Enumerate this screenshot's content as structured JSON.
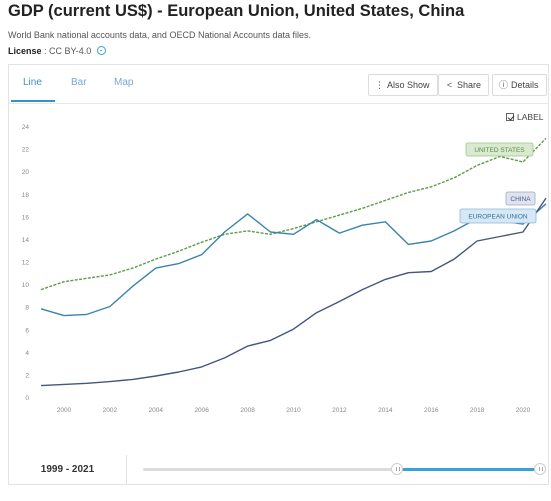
{
  "header": {
    "title": "GDP (current US$) - European Union, United States, China",
    "source": "World Bank national accounts data, and OECD National Accounts data files.",
    "license_label": "License",
    "license_value": ": CC BY-4.0"
  },
  "tabs": [
    {
      "label": "Line",
      "active": true
    },
    {
      "label": "Bar",
      "active": false
    },
    {
      "label": "Map",
      "active": false
    }
  ],
  "toolbar": {
    "also_show": "Also Show",
    "share": "Share",
    "details": "Details"
  },
  "label_toggle": {
    "text": "LABEL",
    "checked": true
  },
  "footer": {
    "range": "1999 - 2021"
  },
  "slider": {
    "start_year": 1960,
    "end_year": 2021,
    "range_start": 1999,
    "range_end": 2021
  },
  "colors": {
    "united_states": "#5a9e45",
    "european_union": "#3b83ad",
    "china": "#44557f",
    "accent": "#3aa0dc"
  },
  "chart_data": {
    "type": "line",
    "x": [
      1999,
      2000,
      2001,
      2002,
      2003,
      2004,
      2005,
      2006,
      2007,
      2008,
      2009,
      2010,
      2011,
      2012,
      2013,
      2014,
      2015,
      2016,
      2017,
      2018,
      2019,
      2020,
      2021
    ],
    "x_ticks": [
      "2000",
      "2002",
      "2004",
      "2006",
      "2008",
      "2010",
      "2012",
      "2014",
      "2016",
      "2018",
      "2020"
    ],
    "y_ticks": [
      "0",
      "2",
      "4",
      "6",
      "8",
      "10",
      "12",
      "14",
      "16",
      "18",
      "20",
      "22",
      "24"
    ],
    "ylim": [
      0,
      24
    ],
    "grid": false,
    "series": [
      {
        "name": "UNITED STATES",
        "color": "#5a9e45",
        "dashed": true,
        "values": [
          9.6,
          10.3,
          10.6,
          10.9,
          11.5,
          12.3,
          13.0,
          13.8,
          14.5,
          14.8,
          14.5,
          15.0,
          15.6,
          16.2,
          16.8,
          17.5,
          18.2,
          18.7,
          19.5,
          20.6,
          21.4,
          20.9,
          23.0
        ]
      },
      {
        "name": "EUROPEAN UNION",
        "color": "#3b83ad",
        "dashed": false,
        "values": [
          7.9,
          7.3,
          7.4,
          8.1,
          9.9,
          11.5,
          11.9,
          12.7,
          14.7,
          16.3,
          14.7,
          14.5,
          15.8,
          14.6,
          15.3,
          15.6,
          13.6,
          13.9,
          14.8,
          15.9,
          15.7,
          15.4,
          17.2
        ]
      },
      {
        "name": "CHINA",
        "color": "#44557f",
        "dashed": false,
        "values": [
          1.1,
          1.2,
          1.3,
          1.45,
          1.65,
          1.95,
          2.3,
          2.75,
          3.55,
          4.6,
          5.1,
          6.1,
          7.55,
          8.55,
          9.6,
          10.5,
          11.1,
          11.2,
          12.3,
          13.9,
          14.3,
          14.7,
          17.7
        ]
      }
    ]
  }
}
